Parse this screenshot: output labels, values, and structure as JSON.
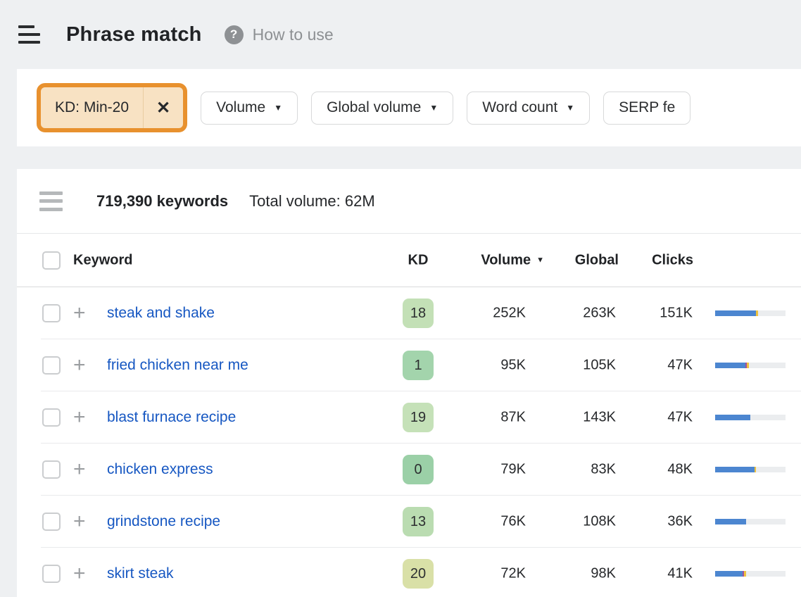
{
  "header": {
    "title": "Phrase match",
    "help_icon": "?",
    "help_label": "How to use"
  },
  "filters": {
    "active_chip": {
      "label": "KD: Min-20",
      "close_icon": "✕"
    },
    "buttons": [
      {
        "label": "Volume"
      },
      {
        "label": "Global volume"
      },
      {
        "label": "Word count"
      },
      {
        "label": "SERP fe"
      }
    ],
    "caret_icon": "▼"
  },
  "stats": {
    "keywords_total": "719,390 keywords",
    "total_volume": "Total volume: 62M"
  },
  "table": {
    "columns": {
      "keyword": "Keyword",
      "kd": "KD",
      "volume": "Volume",
      "global": "Global",
      "clicks": "Clicks"
    },
    "sort": {
      "column": "Volume",
      "direction": "desc",
      "caret_icon": "▼"
    },
    "rows": [
      {
        "keyword": "steak and shake",
        "kd": "18",
        "kd_color": "#c3e0b6",
        "volume": "252K",
        "global": "263K",
        "clicks": "151K",
        "bar": {
          "blue": 58,
          "purple": 0,
          "yellow": 3
        }
      },
      {
        "keyword": "fried chicken near me",
        "kd": "1",
        "kd_color": "#a3d4ac",
        "volume": "95K",
        "global": "105K",
        "clicks": "47K",
        "bar": {
          "blue": 43,
          "purple": 2,
          "yellow": 3
        }
      },
      {
        "keyword": "blast furnace recipe",
        "kd": "19",
        "kd_color": "#c5e1b8",
        "volume": "87K",
        "global": "143K",
        "clicks": "47K",
        "bar": {
          "blue": 50,
          "purple": 0,
          "yellow": 0
        }
      },
      {
        "keyword": "chicken express",
        "kd": "0",
        "kd_color": "#9bd0a7",
        "volume": "79K",
        "global": "83K",
        "clicks": "48K",
        "bar": {
          "blue": 56,
          "purple": 0,
          "yellow": 2
        }
      },
      {
        "keyword": "grindstone recipe",
        "kd": "13",
        "kd_color": "#badcb1",
        "volume": "76K",
        "global": "108K",
        "clicks": "36K",
        "bar": {
          "blue": 44,
          "purple": 0,
          "yellow": 0
        }
      },
      {
        "keyword": "skirt steak",
        "kd": "20",
        "kd_color": "#d9e0a7",
        "volume": "72K",
        "global": "98K",
        "clicks": "41K",
        "bar": {
          "blue": 39,
          "purple": 2,
          "yellow": 3
        }
      }
    ]
  },
  "colors": {
    "bar": {
      "blue": "#4c86d0",
      "purple": "#a0529f",
      "yellow": "#eec23f",
      "track": "#ebedef"
    },
    "chip_highlight_border": "#e8912e",
    "chip_background": "#f8e2c3",
    "link_blue": "#1657c2"
  }
}
